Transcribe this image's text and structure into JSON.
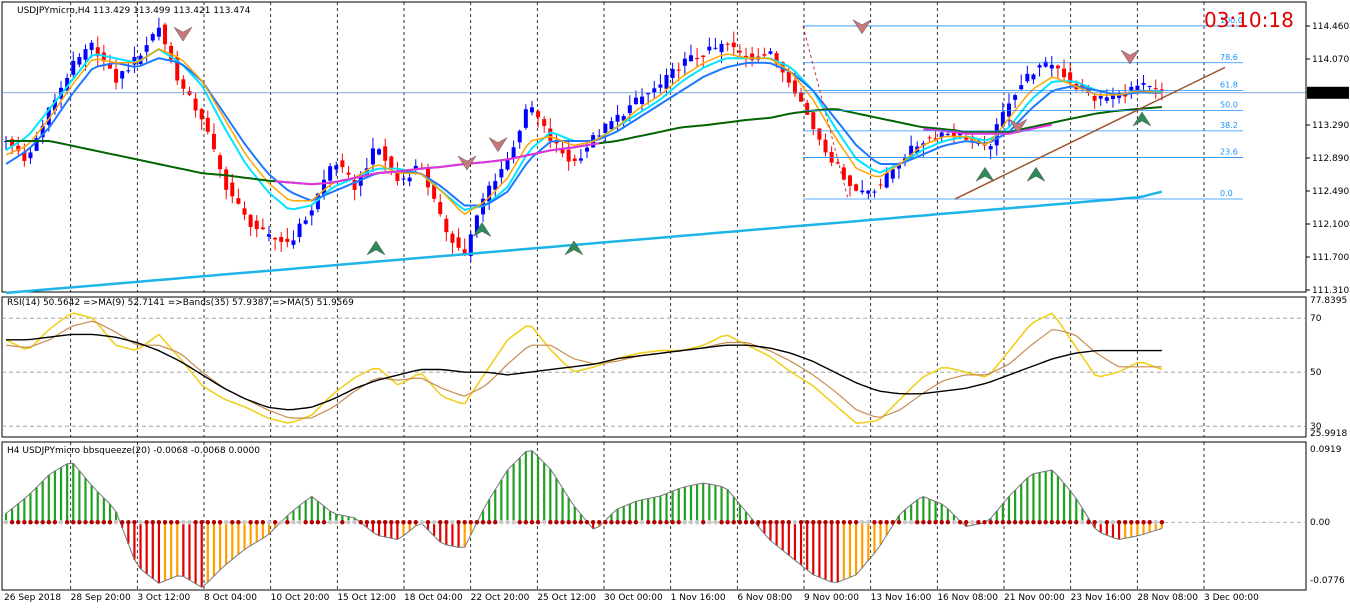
{
  "main": {
    "title": "USDJPYmicro,H4  113.429 113.499 113.421 113.474",
    "clock": "03:10:18",
    "price_tag": "113.474",
    "fib_levels": [
      {
        "label": "100.0",
        "price": 114.2
      },
      {
        "label": "78.6",
        "price": 113.8
      },
      {
        "label": "61.8",
        "price": 113.5
      },
      {
        "label": "50.0",
        "price": 113.28
      },
      {
        "label": "38.2",
        "price": 113.06
      },
      {
        "label": "23.6",
        "price": 112.77
      },
      {
        "label": "0.0",
        "price": 112.32
      }
    ]
  },
  "rsi": {
    "title": "RSI(14) 50.5642  =>MA(9) 52.7141  =>Bands(35) 57.9387  =>MA(5) 51.9569"
  },
  "squeeze": {
    "title": "H4 USDJPYmicro bbsqueeze(20) -0.0068 -0.0068 0.0000"
  },
  "colors": {
    "bull": "#0000ff",
    "bear": "#ff0000",
    "ma_green": "#006400",
    "ma_blue": "#1eb4e6",
    "ma_magenta": "#e632e6",
    "fast_cyan": "#00e5ff",
    "fast_blue": "#1e78ff",
    "orange": "#ffa500",
    "rsi_yellow": "#f0d020",
    "rsi_brown": "#c88c50",
    "hist_green": "#22a022",
    "hist_red": "#e00000",
    "hist_orange": "#ffa000",
    "dot_red": "#b00000",
    "fib": "#1e90ff"
  },
  "chart_data": [
    {
      "type": "candlestick",
      "panel": "price",
      "ylim": [
        111.31,
        114.46
      ],
      "y_ticks": [
        "114.460",
        "114.070",
        "113.680",
        "113.290",
        "112.890",
        "112.490",
        "112.100",
        "111.700",
        "111.310"
      ],
      "x_ticks": [
        "26 Sep 2018",
        "28 Sep 20:00",
        "3 Oct 12:00",
        "8 Oct 04:00",
        "10 Oct 20:00",
        "15 Oct 12:00",
        "18 Oct 04:00",
        "22 Oct 20:00",
        "25 Oct 12:00",
        "30 Oct 00:00",
        "1 Nov 16:00",
        "6 Nov 08:00",
        "9 Nov 00:00",
        "13 Nov 16:00",
        "16 Nov 08:00",
        "21 Nov 00:00",
        "23 Nov 16:00",
        "28 Nov 08:00",
        "3 Dec 00:00"
      ],
      "close_path": [
        112.95,
        112.75,
        113.3,
        113.75,
        114.0,
        113.6,
        113.85,
        114.2,
        113.55,
        113.2,
        112.5,
        112.1,
        111.9,
        111.85,
        112.2,
        112.75,
        112.45,
        112.9,
        112.5,
        112.7,
        112.05,
        111.7,
        112.4,
        112.75,
        113.35,
        112.95,
        112.7,
        113.0,
        113.2,
        113.4,
        113.55,
        113.8,
        113.9,
        114.0,
        113.85,
        113.9,
        113.6,
        113.1,
        112.7,
        112.4,
        112.45,
        112.75,
        112.95,
        113.05,
        113.0,
        112.85,
        113.4,
        113.7,
        113.8,
        113.55,
        113.4,
        113.45,
        113.55,
        113.47
      ],
      "series": [
        {
          "name": "",
          "values_path": [
            112.85,
            113.0,
            113.3,
            113.6,
            113.9,
            113.85,
            113.8,
            113.95,
            113.8,
            113.55,
            113.1,
            112.7,
            112.4,
            112.2,
            112.25,
            112.45,
            112.55,
            112.65,
            112.65,
            112.6,
            112.4,
            112.2,
            112.25,
            112.45,
            112.85,
            113.05,
            112.95,
            112.95,
            113.1,
            113.25,
            113.4,
            113.6,
            113.75,
            113.85,
            113.85,
            113.85,
            113.75,
            113.5,
            113.1,
            112.75,
            112.6,
            112.7,
            112.85,
            112.95,
            113.0,
            112.95,
            113.1,
            113.4,
            113.6,
            113.6,
            113.5,
            113.45,
            113.5,
            113.48
          ]
        },
        {
          "name": "",
          "values_path": [
            112.7,
            112.85,
            113.1,
            113.45,
            113.75,
            113.8,
            113.75,
            113.85,
            113.8,
            113.6,
            113.25,
            112.9,
            112.6,
            112.4,
            112.3,
            112.4,
            112.5,
            112.6,
            112.62,
            112.6,
            112.45,
            112.25,
            112.25,
            112.4,
            112.75,
            112.95,
            112.95,
            112.95,
            113.05,
            113.2,
            113.35,
            113.5,
            113.65,
            113.75,
            113.8,
            113.8,
            113.7,
            113.5,
            113.2,
            112.9,
            112.7,
            112.7,
            112.8,
            112.9,
            112.95,
            112.92,
            113.05,
            113.3,
            113.5,
            113.55,
            113.5,
            113.45,
            113.48,
            113.47
          ]
        },
        {
          "name": "",
          "values_path": [
            112.8,
            112.9,
            113.2,
            113.55,
            113.85,
            113.8,
            113.8,
            113.95,
            113.85,
            113.6,
            113.2,
            112.8,
            112.5,
            112.3,
            112.3,
            112.5,
            112.55,
            112.7,
            112.6,
            112.6,
            112.4,
            112.15,
            112.3,
            112.55,
            112.95,
            113.0,
            112.9,
            112.95,
            113.1,
            113.3,
            113.45,
            113.65,
            113.8,
            113.9,
            113.85,
            113.85,
            113.7,
            113.4,
            113.0,
            112.65,
            112.55,
            112.7,
            112.9,
            113.0,
            113.0,
            112.9,
            113.2,
            113.5,
            113.65,
            113.55,
            113.45,
            113.45,
            113.5,
            113.47
          ]
        },
        {
          "name": "",
          "values_path": [
            112.95,
            112.95,
            112.95,
            112.9,
            112.85,
            112.8,
            112.75,
            112.7,
            112.65,
            112.6,
            112.58,
            112.55,
            112.52,
            112.5,
            112.48,
            112.5,
            112.55,
            112.6,
            112.62,
            112.65,
            112.67,
            112.7,
            112.72,
            112.75,
            112.8,
            112.85,
            112.88,
            112.92,
            112.95,
            113.0,
            113.05,
            113.1,
            113.12,
            113.15,
            113.18,
            113.2,
            113.25,
            113.28,
            113.3,
            113.25,
            113.2,
            113.15,
            113.1,
            113.08,
            113.05,
            113.05,
            113.05,
            113.1,
            113.15,
            113.2,
            113.25,
            113.28,
            113.3,
            113.32
          ]
        },
        {
          "name": "",
          "values_path": [
            111.3,
            111.32,
            111.34,
            111.36,
            111.38,
            111.4,
            111.42,
            111.44,
            111.46,
            111.48,
            111.5,
            111.52,
            111.54,
            111.56,
            111.58,
            111.6,
            111.62,
            111.64,
            111.66,
            111.68,
            111.7,
            111.72,
            111.74,
            111.76,
            111.78,
            111.8,
            111.82,
            111.84,
            111.86,
            111.88,
            111.9,
            111.92,
            111.94,
            111.96,
            111.98,
            112.0,
            112.02,
            112.04,
            112.06,
            112.08,
            112.1,
            112.12,
            112.14,
            112.16,
            112.18,
            112.2,
            112.22,
            112.24,
            112.26,
            112.28,
            112.3,
            112.32,
            112.34,
            112.4
          ]
        }
      ]
    },
    {
      "type": "line",
      "panel": "rsi",
      "ylim": [
        25.9918,
        77.8395
      ],
      "y_ticks": [
        "77.8395",
        "70",
        "50",
        "30",
        "25.9918"
      ],
      "series": [
        {
          "name": "RSI(14)",
          "values_path": [
            62,
            58,
            66,
            72,
            70,
            60,
            58,
            64,
            55,
            45,
            40,
            37,
            33,
            31,
            34,
            42,
            48,
            52,
            45,
            50,
            41,
            38,
            50,
            62,
            68,
            58,
            50,
            52,
            55,
            57,
            58,
            58,
            60,
            64,
            60,
            56,
            50,
            45,
            38,
            31,
            32,
            40,
            48,
            52,
            50,
            48,
            58,
            68,
            72,
            60,
            48,
            50,
            54,
            51
          ]
        },
        {
          "name": "MA(9)",
          "values_path": [
            60,
            59,
            62,
            67,
            69,
            65,
            60,
            60,
            57,
            50,
            44,
            40,
            36,
            33,
            33,
            37,
            43,
            48,
            47,
            48,
            44,
            41,
            45,
            53,
            60,
            60,
            55,
            53,
            54,
            56,
            57,
            58,
            59,
            61,
            61,
            58,
            54,
            49,
            43,
            36,
            33,
            36,
            42,
            47,
            49,
            49,
            53,
            60,
            66,
            64,
            57,
            52,
            52,
            52
          ]
        },
        {
          "name": "Bands(35)",
          "values_path": [
            62,
            62,
            63,
            64,
            64,
            63,
            61,
            58,
            54,
            49,
            44,
            40,
            37,
            36,
            37,
            40,
            44,
            47,
            49,
            51,
            51,
            50,
            50,
            49,
            50,
            51,
            52,
            53,
            55,
            56,
            57,
            58,
            59,
            60,
            60,
            59,
            57,
            54,
            50,
            46,
            43,
            42,
            42,
            43,
            44,
            46,
            49,
            52,
            55,
            57,
            58,
            58,
            58,
            58
          ]
        }
      ]
    },
    {
      "type": "bar",
      "panel": "squeeze",
      "ylim": [
        -0.0776,
        0.0919
      ],
      "y_ticks": [
        "0.0919",
        "0.00",
        "-0.0776"
      ],
      "values_path": [
        0.01,
        0.03,
        0.055,
        0.07,
        0.04,
        0.015,
        -0.05,
        -0.07,
        -0.06,
        -0.075,
        -0.05,
        -0.03,
        -0.015,
        0.01,
        0.03,
        0.01,
        0.005,
        -0.015,
        -0.02,
        0.0,
        -0.025,
        -0.03,
        0.02,
        0.06,
        0.085,
        0.06,
        0.02,
        -0.01,
        0.015,
        0.025,
        0.03,
        0.04,
        0.045,
        0.04,
        0.01,
        -0.02,
        -0.04,
        -0.06,
        -0.07,
        -0.06,
        -0.03,
        0.01,
        0.03,
        0.02,
        -0.005,
        0.0,
        0.03,
        0.055,
        0.06,
        0.03,
        -0.01,
        -0.02,
        -0.015,
        -0.007
      ]
    }
  ]
}
